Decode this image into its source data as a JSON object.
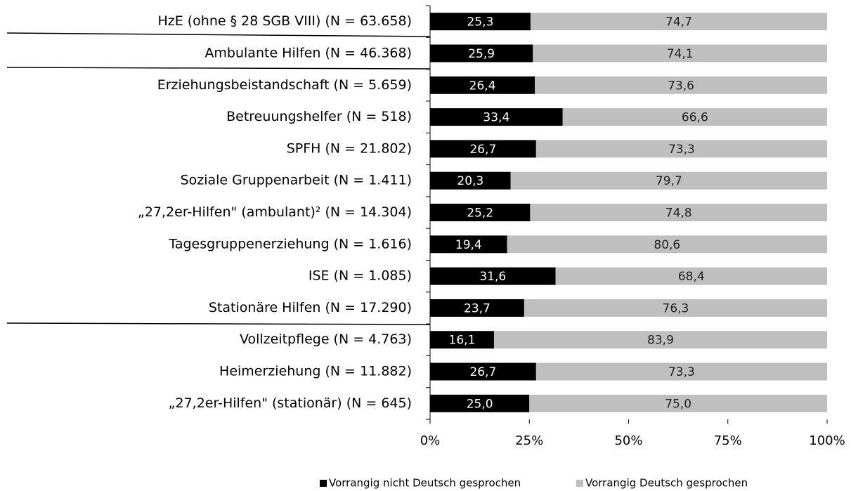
{
  "chart_data": {
    "type": "stacked_bar_horizontal",
    "categories": [
      "HzE (ohne § 28 SGB VIII) (N = 63.658)",
      "Ambulante Hilfen (N = 46.368)",
      "Erziehungsbeistandschaft (N = 5.659)",
      "Betreuungshelfer (N = 518)",
      "SPFH (N = 21.802)",
      "Soziale Gruppenarbeit (N = 1.411)",
      "„27,2er-Hilfen\" (ambulant)² (N = 14.304)",
      "Tagesgruppenerziehung (N = 1.616)",
      "ISE (N = 1.085)",
      "Stationäre Hilfen (N = 17.290)",
      "Vollzeitpflege (N = 4.763)",
      "Heimerziehung (N = 11.882)",
      "„27,2er-Hilfen\" (stationär) (N = 645)"
    ],
    "series": [
      {
        "name": "Vorrangig nicht Deutsch gesprochen",
        "color": "#000000",
        "values": [
          25.3,
          25.9,
          26.4,
          33.4,
          26.7,
          20.3,
          25.2,
          19.4,
          31.6,
          23.7,
          16.1,
          26.7,
          25.0
        ],
        "value_labels": [
          "25,3",
          "25,9",
          "26,4",
          "33,4",
          "26,7",
          "20,3",
          "25,2",
          "19,4",
          "31,6",
          "23,7",
          "16,1",
          "26,7",
          "25,0"
        ]
      },
      {
        "name": "Vorrangig Deutsch gesprochen",
        "color": "#bfbfbf",
        "values": [
          74.7,
          74.1,
          73.6,
          66.6,
          73.3,
          79.7,
          74.8,
          80.6,
          68.4,
          76.3,
          83.9,
          73.3,
          75.0
        ],
        "value_labels": [
          "74,7",
          "74,1",
          "73,6",
          "66,6",
          "73,3",
          "79,7",
          "74,8",
          "80,6",
          "68,4",
          "76,3",
          "83,9",
          "73,3",
          "75,0"
        ]
      }
    ],
    "xlim": [
      0,
      100
    ],
    "xticks": [
      {
        "value": 0,
        "label": "0%"
      },
      {
        "value": 25,
        "label": "25%"
      },
      {
        "value": 50,
        "label": "50%"
      },
      {
        "value": 75,
        "label": "75%"
      },
      {
        "value": 100,
        "label": "100%"
      }
    ],
    "legend": "bottom"
  }
}
